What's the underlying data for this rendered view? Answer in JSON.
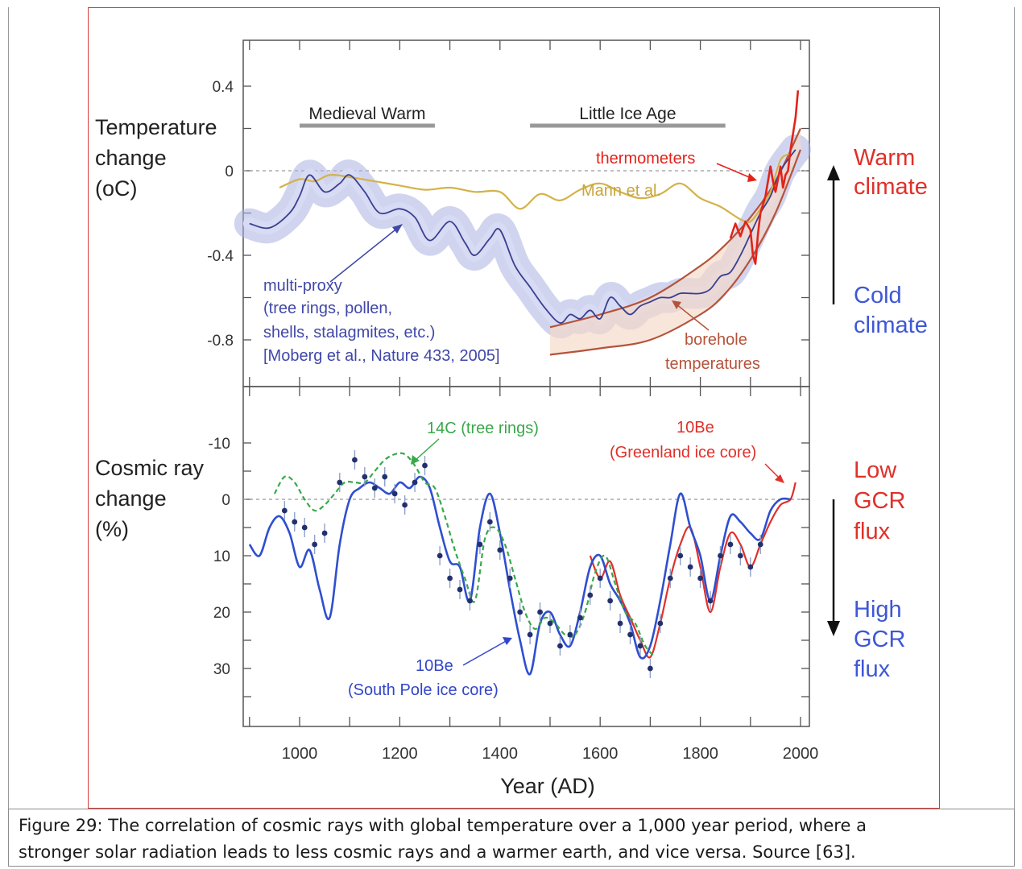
{
  "caption": {
    "line1": "Figure 29: The correlation of cosmic rays with global temperature over a 1,000 year period, where a",
    "line2": "stronger solar radiation leads to less cosmic rays and a warmer earth, and vice versa. Source [63]."
  },
  "colors": {
    "multiproxy": "#3b3f8f",
    "multiproxy_band": "#aab0e0",
    "mann": "#d4b24a",
    "thermometers": "#e2231a",
    "borehole": "#b5533a",
    "c14": "#39a84a",
    "be10_south": "#2f4fd0",
    "be10_greenland": "#e0302a",
    "warm": "#e0302a",
    "cold": "#3d57d6"
  },
  "chart_data": [
    {
      "type": "line",
      "panel": "top",
      "ylabel": {
        "line1": "Temperature",
        "line2": "change",
        "line3": "(oC)"
      },
      "ytick_labels": [
        "0.4",
        "0",
        "-0.4",
        "-0.8"
      ],
      "yticks": [
        0.4,
        0,
        -0.4,
        -0.8
      ],
      "ylim": [
        -0.95,
        0.6
      ],
      "xlim": [
        900,
        2020
      ],
      "reference_line": 0,
      "periods": [
        {
          "label": "Medieval Warm",
          "from": 1000,
          "to": 1270
        },
        {
          "label": "Little Ice Age",
          "from": 1460,
          "to": 1850
        }
      ],
      "annotations": {
        "thermometers": "thermometers",
        "mann": "Mann et al.",
        "multiproxy_1": "multi-proxy",
        "multiproxy_2": "(tree rings, pollen,",
        "multiproxy_3": "shells, stalagmites, etc.)",
        "multiproxy_4": "[Moberg et al., Nature 433, 2005]",
        "borehole_1": "borehole",
        "borehole_2": "temperatures"
      },
      "series": [
        {
          "key": "multiproxy",
          "x": [
            900,
            940,
            980,
            1000,
            1020,
            1050,
            1080,
            1100,
            1130,
            1160,
            1200,
            1230,
            1260,
            1300,
            1330,
            1350,
            1380,
            1400,
            1430,
            1460,
            1490,
            1520,
            1540,
            1560,
            1580,
            1600,
            1620,
            1640,
            1660,
            1680,
            1700,
            1720,
            1740,
            1760,
            1780,
            1800,
            1820,
            1840,
            1860,
            1880,
            1900,
            1920,
            1940,
            1960,
            1990
          ],
          "y": [
            -0.25,
            -0.27,
            -0.2,
            -0.12,
            -0.02,
            -0.1,
            -0.06,
            -0.02,
            -0.1,
            -0.2,
            -0.18,
            -0.22,
            -0.33,
            -0.24,
            -0.34,
            -0.4,
            -0.32,
            -0.28,
            -0.45,
            -0.55,
            -0.65,
            -0.72,
            -0.68,
            -0.7,
            -0.66,
            -0.7,
            -0.6,
            -0.64,
            -0.68,
            -0.64,
            -0.62,
            -0.6,
            -0.6,
            -0.58,
            -0.58,
            -0.58,
            -0.56,
            -0.5,
            -0.48,
            -0.4,
            -0.3,
            -0.2,
            -0.12,
            0.0,
            0.1
          ]
        },
        {
          "key": "mann",
          "x": [
            960,
            1000,
            1030,
            1060,
            1100,
            1150,
            1200,
            1250,
            1300,
            1350,
            1400,
            1440,
            1480,
            1520,
            1560,
            1600,
            1640,
            1680,
            1720,
            1760,
            1800,
            1840,
            1880,
            1900,
            1920,
            1940,
            1960,
            1980
          ],
          "y": [
            -0.08,
            -0.04,
            -0.05,
            -0.02,
            -0.03,
            -0.05,
            -0.07,
            -0.09,
            -0.08,
            -0.1,
            -0.1,
            -0.18,
            -0.11,
            -0.14,
            -0.09,
            -0.06,
            -0.1,
            -0.13,
            -0.11,
            -0.06,
            -0.13,
            -0.17,
            -0.23,
            -0.24,
            -0.18,
            -0.1,
            0.05,
            0.08
          ]
        },
        {
          "key": "thermometers",
          "x": [
            1860,
            1870,
            1880,
            1890,
            1900,
            1905,
            1910,
            1915,
            1920,
            1930,
            1940,
            1945,
            1950,
            1960,
            1965,
            1970,
            1975,
            1980,
            1990,
            1995
          ],
          "y": [
            -0.32,
            -0.25,
            -0.31,
            -0.24,
            -0.28,
            -0.4,
            -0.44,
            -0.3,
            -0.2,
            -0.12,
            0.02,
            -0.05,
            -0.1,
            0.02,
            -0.08,
            -0.02,
            0.0,
            0.1,
            0.25,
            0.38
          ]
        },
        {
          "key": "borehole_upper",
          "x": [
            1500,
            1600,
            1700,
            1800,
            1850,
            1900,
            1950,
            2000
          ],
          "y": [
            -0.74,
            -0.68,
            -0.6,
            -0.45,
            -0.35,
            -0.22,
            -0.05,
            0.2
          ]
        },
        {
          "key": "borehole_lower",
          "x": [
            1500,
            1600,
            1700,
            1800,
            1850,
            1900,
            1950,
            2000
          ],
          "y": [
            -0.87,
            -0.84,
            -0.8,
            -0.68,
            -0.58,
            -0.42,
            -0.2,
            0.1
          ]
        }
      ]
    },
    {
      "type": "line",
      "panel": "bottom",
      "ylabel": {
        "line1": "Cosmic ray",
        "line2": "change",
        "line3": "(%)"
      },
      "ytick_labels": [
        "-10",
        "0",
        "10",
        "20",
        "30"
      ],
      "yticks": [
        -10,
        0,
        10,
        20,
        30
      ],
      "ylim": [
        -15,
        40
      ],
      "y_inverted": true,
      "xlim": [
        900,
        2020
      ],
      "xlabel": "Year (AD)",
      "xtick_labels": [
        "1000",
        "1200",
        "1400",
        "1600",
        "1800",
        "2000"
      ],
      "xticks": [
        1000,
        1200,
        1400,
        1600,
        1800,
        2000
      ],
      "reference_line": 0,
      "annotations": {
        "c14": "14C (tree rings)",
        "be10_greenland_1": "10Be",
        "be10_greenland_2": "(Greenland ice core)",
        "be10_south_1": "10Be",
        "be10_south_2": "(South Pole ice core)"
      },
      "series": [
        {
          "key": "be10_south",
          "x": [
            900,
            920,
            940,
            960,
            980,
            1000,
            1020,
            1040,
            1060,
            1080,
            1100,
            1120,
            1140,
            1160,
            1180,
            1200,
            1220,
            1240,
            1260,
            1280,
            1300,
            1320,
            1340,
            1360,
            1380,
            1400,
            1420,
            1440,
            1460,
            1480,
            1500,
            1520,
            1540,
            1560,
            1580,
            1600,
            1620,
            1640,
            1660,
            1680,
            1700,
            1720,
            1740,
            1760,
            1780,
            1800,
            1820,
            1840,
            1860,
            1880,
            1900,
            1920,
            1940,
            1960,
            1980
          ],
          "y": [
            8,
            10,
            5,
            3,
            6,
            12,
            9,
            16,
            21,
            8,
            0,
            -2,
            -3,
            -2,
            -1,
            -3,
            -2,
            -4,
            -2,
            5,
            11,
            12,
            18,
            5,
            -1,
            6,
            16,
            25,
            31,
            22,
            20,
            24,
            26,
            20,
            12,
            10,
            15,
            18,
            22,
            28,
            26,
            18,
            8,
            -1,
            5,
            10,
            18,
            10,
            3,
            4,
            6,
            7,
            2,
            0,
            0
          ]
        },
        {
          "key": "c14",
          "x": [
            950,
            970,
            990,
            1010,
            1030,
            1050,
            1070,
            1090,
            1110,
            1130,
            1150,
            1170,
            1190,
            1210,
            1230,
            1250,
            1270,
            1290,
            1310,
            1330,
            1350,
            1370,
            1390,
            1410,
            1430,
            1450,
            1470,
            1490,
            1510,
            1530,
            1550,
            1570,
            1590,
            1610,
            1630,
            1650,
            1670,
            1690,
            1710
          ],
          "y": [
            -1,
            -4,
            -3,
            0,
            2,
            1,
            -1,
            -3,
            -3,
            -3,
            -5,
            -7,
            -8,
            -8,
            -6,
            -3,
            -2,
            3,
            9,
            14,
            18,
            7,
            5,
            8,
            14,
            20,
            23,
            21,
            22,
            24,
            24,
            20,
            13,
            10,
            15,
            20,
            22,
            26,
            28
          ]
        },
        {
          "key": "be10_greenland",
          "x": [
            1580,
            1600,
            1620,
            1640,
            1660,
            1680,
            1700,
            1720,
            1740,
            1760,
            1780,
            1800,
            1820,
            1840,
            1860,
            1880,
            1900,
            1920,
            1940,
            1960,
            1980,
            1990
          ],
          "y": [
            10,
            14,
            11,
            17,
            21,
            25,
            28,
            22,
            14,
            8,
            5,
            12,
            20,
            12,
            6,
            8,
            12,
            8,
            4,
            1,
            0,
            -3
          ]
        }
      ],
      "scatter": {
        "key": "c14_points",
        "x": [
          970,
          990,
          1010,
          1030,
          1050,
          1080,
          1110,
          1130,
          1150,
          1170,
          1190,
          1210,
          1230,
          1250,
          1280,
          1300,
          1320,
          1340,
          1360,
          1380,
          1400,
          1420,
          1440,
          1460,
          1480,
          1500,
          1520,
          1540,
          1560,
          1580,
          1600,
          1620,
          1640,
          1660,
          1680,
          1700,
          1720,
          1740,
          1760,
          1780,
          1800,
          1820,
          1840,
          1860,
          1880,
          1900,
          1920
        ],
        "y": [
          2,
          4,
          5,
          8,
          6,
          -3,
          -7,
          -4,
          -2,
          -4,
          -1,
          1,
          -3,
          -6,
          10,
          14,
          16,
          18,
          8,
          4,
          9,
          14,
          20,
          24,
          20,
          22,
          26,
          24,
          21,
          17,
          14,
          18,
          22,
          24,
          26,
          30,
          22,
          14,
          10,
          12,
          14,
          18,
          10,
          8,
          10,
          12,
          8
        ]
      }
    }
  ],
  "right_labels": {
    "warm_1": "Warm",
    "warm_2": "climate",
    "cold_1": "Cold",
    "cold_2": "climate",
    "low_1": "Low",
    "low_2": "GCR",
    "low_3": "flux",
    "high_1": "High",
    "high_2": "GCR",
    "high_3": "flux"
  }
}
